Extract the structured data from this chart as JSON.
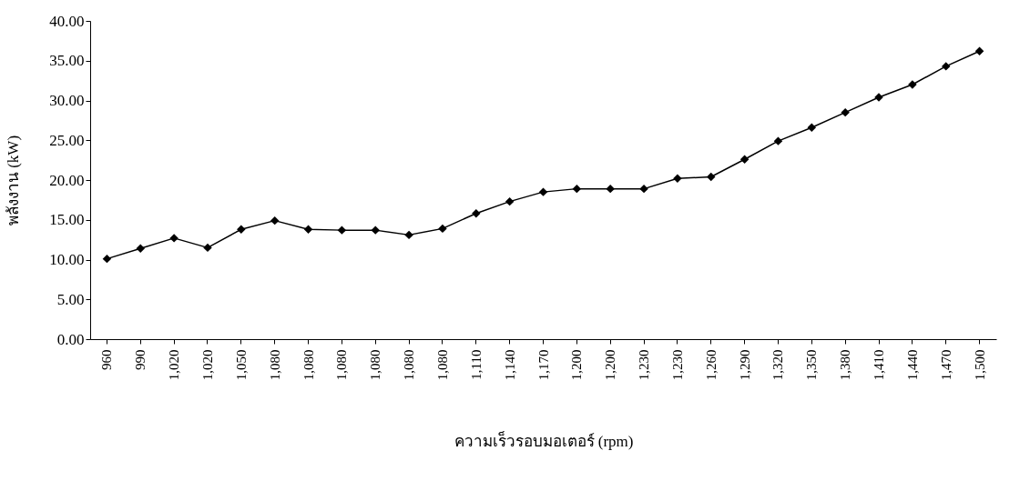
{
  "chart_data": {
    "type": "line",
    "xlabel": "ความเร็วรอบมอเตอร์ (rpm)",
    "ylabel": "พลังงาน  (kW)",
    "categories": [
      "960",
      "990",
      "1,020",
      "1,020",
      "1,050",
      "1,080",
      "1,080",
      "1,080",
      "1,080",
      "1,080",
      "1,080",
      "1,110",
      "1,140",
      "1,170",
      "1,200",
      "1,200",
      "1,230",
      "1,230",
      "1,260",
      "1,290",
      "1,320",
      "1,350",
      "1,380",
      "1,410",
      "1,440",
      "1,470",
      "1,500"
    ],
    "series": [
      {
        "color": "#000000",
        "values": [
          10.1,
          11.4,
          12.7,
          11.5,
          13.8,
          14.9,
          13.8,
          13.7,
          13.7,
          13.1,
          13.9,
          15.8,
          17.3,
          18.5,
          18.9,
          18.9,
          18.9,
          20.2,
          20.4,
          22.6,
          24.9,
          26.6,
          28.5,
          30.4,
          32.0,
          34.3,
          36.2
        ]
      }
    ],
    "ylim": [
      0,
      40
    ],
    "yticks": [
      {
        "value": 0,
        "label": "0.00"
      },
      {
        "value": 5,
        "label": "5.00"
      },
      {
        "value": 10,
        "label": "10.00"
      },
      {
        "value": 15,
        "label": "15.00"
      },
      {
        "value": 20,
        "label": "20.00"
      },
      {
        "value": 25,
        "label": "25.00"
      },
      {
        "value": 30,
        "label": "30.00"
      },
      {
        "value": 35,
        "label": "35.00"
      },
      {
        "value": 40,
        "label": "40.00"
      }
    ],
    "grid": false,
    "legend": false,
    "marker": "diamond",
    "line_style": "solid"
  }
}
